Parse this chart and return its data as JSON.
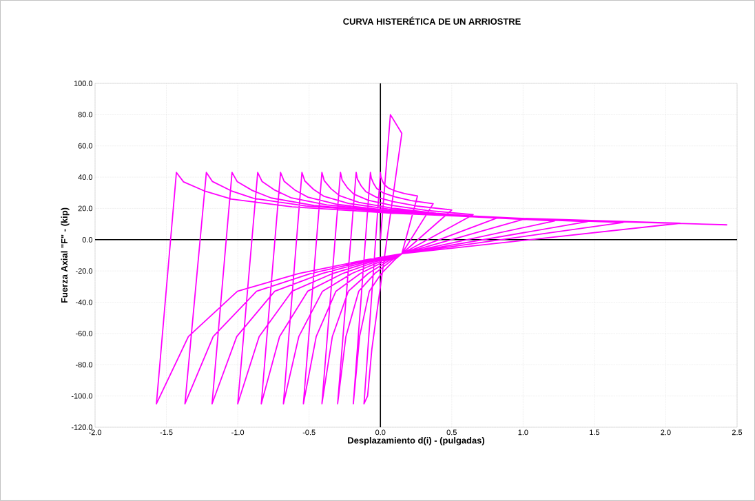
{
  "chart_data": {
    "type": "line",
    "title": "CURVA HISTERÉTICA DE UN ARRIOSTRE",
    "xlabel": "Desplazamiento d(i)  -   (pulgadas)",
    "ylabel": "Fuerza Axial   \"F\"  -   (kip)",
    "x": [
      0,
      0.07,
      0.15,
      0.03,
      -0.06,
      -0.09,
      -0.115,
      0,
      0.003,
      0.014,
      0.026,
      0.055,
      0.101,
      0.169,
      0.26,
      0.15,
      0.102,
      0.007,
      -0.078,
      -0.146,
      -0.19,
      -0.07,
      -0.064,
      -0.047,
      -0.026,
      0.022,
      0.102,
      0.216,
      0.37,
      0.15,
      0.087,
      -0.039,
      -0.152,
      -0.242,
      -0.3,
      -0.17,
      -0.161,
      -0.135,
      -0.103,
      -0.029,
      0.091,
      0.266,
      0.5,
      0.15,
      0.072,
      -0.085,
      -0.225,
      -0.337,
      -0.41,
      -0.28,
      -0.268,
      -0.232,
      -0.187,
      -0.085,
      0.083,
      0.325,
      0.65,
      0.15,
      0.053,
      -0.14,
      -0.312,
      -0.45,
      -0.54,
      -0.41,
      -0.394,
      -0.346,
      -0.287,
      -0.152,
      0.07,
      0.39,
      0.82,
      0.15,
      0.034,
      -0.199,
      -0.406,
      -0.572,
      -0.68,
      -0.55,
      -0.53,
      -0.469,
      -0.395,
      -0.225,
      0.055,
      0.458,
      1.0,
      0.15,
      0.012,
      -0.264,
      -0.51,
      -0.707,
      -0.835,
      -0.7,
      -0.675,
      -0.6,
      -0.508,
      -0.297,
      0.049,
      0.548,
      1.22,
      0.15,
      -0.011,
      -0.333,
      -0.62,
      -0.85,
      -1.0,
      -0.86,
      -0.83,
      -0.74,
      -0.629,
      -0.375,
      0.041,
      0.642,
      1.45,
      0.15,
      -0.036,
      -0.409,
      -0.741,
      -1.007,
      -1.18,
      -1.04,
      -1.004,
      -0.898,
      -0.766,
      -0.465,
      0.029,
      0.741,
      1.7,
      0.15,
      -0.063,
      -0.488,
      -0.868,
      -1.172,
      -1.37,
      -1.22,
      -1.177,
      -1.047,
      -0.888,
      -0.523,
      0.075,
      0.938,
      2.1,
      0.15,
      -0.091,
      -0.572,
      -1.002,
      -1.346,
      -1.57,
      -1.43,
      -1.38,
      -1.229,
      -1.044,
      -0.619,
      0.075,
      1.079,
      2.43
    ],
    "series": [
      {
        "color": "#ff00ff",
        "values": [
          0,
          80,
          68,
          -10,
          -70,
          -100,
          -105,
          43,
          40.3,
          37.6,
          35.4,
          33.1,
          31.3,
          29.5,
          28,
          -9,
          -12.7,
          -21.6,
          -33,
          -62,
          -105,
          43,
          39.4,
          35.8,
          32.8,
          29.8,
          27.4,
          25,
          23,
          -9,
          -12.7,
          -21.6,
          -33,
          -62,
          -105,
          43,
          38.7,
          34.4,
          30.8,
          27.2,
          24.3,
          21.4,
          19,
          -9,
          -12.7,
          -21.6,
          -33,
          -62,
          -105,
          43,
          38.1,
          33.3,
          29.2,
          25.2,
          21.9,
          18.7,
          16,
          -9,
          -12.7,
          -21.6,
          -33,
          -62,
          -105,
          43,
          37.8,
          32.6,
          28.2,
          23.9,
          20.4,
          16.9,
          14,
          -9,
          -12.7,
          -21.6,
          -33,
          -62,
          -105,
          43,
          37.6,
          32.2,
          27.7,
          23.2,
          19.6,
          16,
          13,
          -9,
          -12.7,
          -21.6,
          -33,
          -62,
          -105,
          43,
          37.4,
          31.8,
          27.2,
          22.5,
          18.8,
          15.1,
          12,
          -9,
          -12.7,
          -21.6,
          -33,
          -62,
          -105,
          43,
          37.3,
          31.7,
          26.9,
          22.2,
          18.4,
          14.7,
          11.5,
          -9,
          -12.7,
          -21.6,
          -33,
          -62,
          -105,
          43,
          37.2,
          31.5,
          26.7,
          21.9,
          18,
          14.2,
          11,
          -9,
          -12.7,
          -21.6,
          -33,
          -62,
          -105,
          43,
          37.2,
          31.3,
          26.4,
          21.6,
          17.7,
          13.8,
          10.5,
          -9,
          -12.7,
          -21.6,
          -33,
          -62,
          -105,
          43,
          37,
          31,
          26,
          21,
          17,
          13,
          9.5
        ]
      }
    ],
    "xlim": [
      -2,
      2.5
    ],
    "xticks": [
      {
        "value": -2,
        "label": "-2.0"
      },
      {
        "value": -1.5,
        "label": "-1.5"
      },
      {
        "value": -1,
        "label": "-1.0"
      },
      {
        "value": -0.5,
        "label": "-0.5"
      },
      {
        "value": 0,
        "label": "0.0"
      },
      {
        "value": 0.5,
        "label": "0.5"
      },
      {
        "value": 1,
        "label": "1.0"
      },
      {
        "value": 1.5,
        "label": "1.5"
      },
      {
        "value": 2,
        "label": "2.0"
      },
      {
        "value": 2.5,
        "label": "2.5"
      }
    ],
    "ylim": [
      -120,
      100
    ],
    "yticks": [
      {
        "value": -120,
        "label": "-120.0"
      },
      {
        "value": -100,
        "label": "-100.0"
      },
      {
        "value": -80,
        "label": "-80.0"
      },
      {
        "value": -60,
        "label": "-60.0"
      },
      {
        "value": -40,
        "label": "-40.0"
      },
      {
        "value": -20,
        "label": "-20.0"
      },
      {
        "value": 0,
        "label": "0.0"
      },
      {
        "value": 20,
        "label": "20.0"
      },
      {
        "value": 40,
        "label": "40.0"
      },
      {
        "value": 60,
        "label": "60.0"
      },
      {
        "value": 80,
        "label": "80.0"
      },
      {
        "value": 100,
        "label": "100.0"
      }
    ],
    "grid": true,
    "marker": "none",
    "line_style": "solid"
  }
}
